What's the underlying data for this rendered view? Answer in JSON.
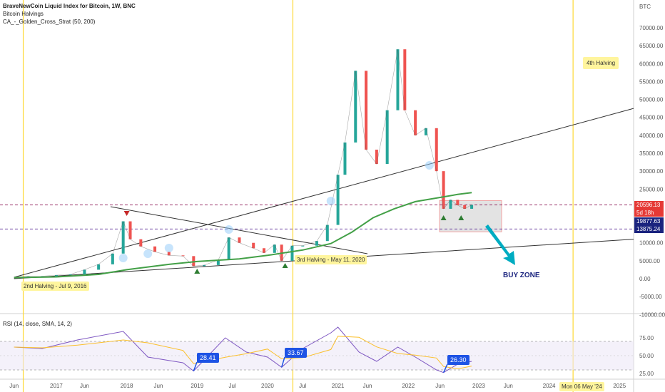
{
  "legend": {
    "title": "BraveNewCoin Liquid Index for Bitcoin, 1W, BNC",
    "indicator1": "Bitcoin Halvings",
    "indicator2": "CA_-_Golden_Cross_Strat (50, 200)"
  },
  "rsi_legend": "RSI (14, close, SMA, 14, 2)",
  "currency": "BTC",
  "annotations": {
    "halving2": "2nd Halving - Jul 9, 2016",
    "halving3": "3rd Halving - May 11, 2020",
    "halving4": "4th Halving",
    "buy_zone": "BUY ZONE",
    "date_marker": "Mon 06 May '24"
  },
  "price_tags": [
    {
      "label": "20596.13",
      "color": "#e53935"
    },
    {
      "label": "5d 18h",
      "color": "#e53935"
    },
    {
      "label": "19877.63",
      "color": "#1a237e"
    },
    {
      "label": "13875.24",
      "color": "#1a237e"
    }
  ],
  "rsi_callouts": [
    "28.41",
    "33.67",
    "26.30"
  ],
  "colors": {
    "up": "#26a69a",
    "down": "#ef5350",
    "ma200": "#43a047",
    "rsi": "#7e57c2",
    "rsi_ma": "#fbc02d",
    "halving_line": "#fdd835",
    "buy_box": "#e0e0e0"
  },
  "chart_data": {
    "type": "line",
    "title": "BraveNewCoin Liquid Index for Bitcoin, 1W, BNC",
    "y_axis_ticks": [
      "70000.00",
      "65000.00",
      "60000.00",
      "55000.00",
      "50000.00",
      "45000.00",
      "40000.00",
      "35000.00",
      "30000.00",
      "25000.00",
      "20000.00",
      "15000.00",
      "10000.00",
      "5000.00",
      "0.00",
      "-5000.00",
      "-10000.00"
    ],
    "x_axis_ticks": [
      "Jun",
      "2017",
      "Jun",
      "2018",
      "Jun",
      "2019",
      "Jul",
      "2020",
      "Jul",
      "2021",
      "Jun",
      "2022",
      "Jun",
      "2023",
      "Jun",
      "2024",
      "Jun",
      "2025"
    ],
    "rsi_axis_ticks": [
      "75.00",
      "50.00",
      "25.00"
    ],
    "ylim": [
      -10000,
      75000
    ],
    "price_series": {
      "name": "BTC",
      "x": [
        2016.4,
        2016.6,
        2016.8,
        2017.0,
        2017.2,
        2017.4,
        2017.6,
        2017.8,
        2017.95,
        2018.05,
        2018.2,
        2018.4,
        2018.6,
        2018.8,
        2018.95,
        2019.1,
        2019.3,
        2019.45,
        2019.6,
        2019.8,
        2019.95,
        2020.1,
        2020.2,
        2020.35,
        2020.5,
        2020.7,
        2020.85,
        2021.0,
        2021.1,
        2021.25,
        2021.4,
        2021.55,
        2021.7,
        2021.85,
        2021.95,
        2022.1,
        2022.25,
        2022.4,
        2022.5,
        2022.6,
        2022.7,
        2022.8,
        2022.9
      ],
      "values": [
        500,
        650,
        700,
        1000,
        1200,
        2500,
        4000,
        7000,
        16000,
        11000,
        9000,
        7500,
        6500,
        6300,
        3500,
        3800,
        5200,
        11500,
        10000,
        8500,
        7200,
        9500,
        5000,
        9200,
        9200,
        10500,
        15000,
        29000,
        38000,
        58000,
        36000,
        32000,
        47000,
        64000,
        47000,
        40000,
        42000,
        30000,
        19500,
        22000,
        20500,
        19500,
        20596
      ]
    },
    "ma200_series": {
      "name": "MA 200",
      "x": [
        2016.4,
        2017.0,
        2017.6,
        2018.0,
        2018.6,
        2019.0,
        2019.6,
        2020.0,
        2020.5,
        2020.9,
        2021.2,
        2021.5,
        2021.8,
        2022.1,
        2022.4,
        2022.7,
        2022.9
      ],
      "values": [
        300,
        500,
        1200,
        2500,
        4000,
        4800,
        5500,
        6500,
        8000,
        9800,
        13000,
        17000,
        19500,
        21500,
        22500,
        23500,
        24000
      ]
    },
    "rsi_series": {
      "name": "RSI",
      "x": [
        2016.4,
        2016.8,
        2017.3,
        2017.95,
        2018.3,
        2018.8,
        2018.95,
        2019.4,
        2019.7,
        2020.0,
        2020.2,
        2020.5,
        2020.9,
        2021.0,
        2021.3,
        2021.55,
        2021.85,
        2022.1,
        2022.4,
        2022.5,
        2022.7,
        2022.9
      ],
      "values": [
        62,
        60,
        72,
        84,
        48,
        40,
        28.41,
        75,
        55,
        48,
        33.67,
        60,
        82,
        90,
        55,
        42,
        62,
        48,
        30,
        26.3,
        38,
        42
      ]
    },
    "halvings": [
      "2nd Halving - Jul 9, 2016",
      "3rd Halving - May 11, 2020",
      "4th Halving"
    ],
    "buy_zone": [
      13875.24,
      20596.13
    ]
  }
}
